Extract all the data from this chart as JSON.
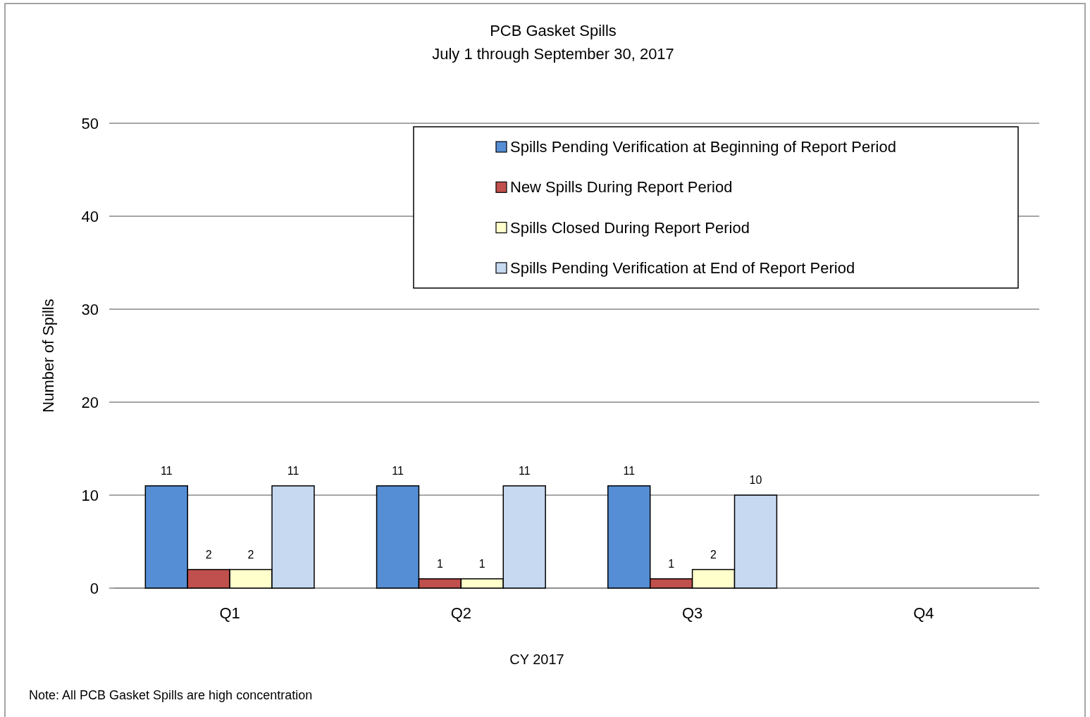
{
  "chart_data": {
    "type": "bar",
    "title": "PCB Gasket Spills",
    "subtitle": "July 1 through September 30, 2017",
    "xlabel": "CY 2017",
    "ylabel": "Number of Spills",
    "categories": [
      "Q1",
      "Q2",
      "Q3",
      "Q4"
    ],
    "series": [
      {
        "name": "Spills Pending Verification at Beginning of Report Period",
        "color": "#558ed5",
        "values": [
          11,
          11,
          11,
          null
        ]
      },
      {
        "name": "New Spills During Report Period",
        "color": "#c0504d",
        "values": [
          2,
          1,
          1,
          null
        ]
      },
      {
        "name": "Spills Closed During Report Period",
        "color": "#ffffcc",
        "values": [
          2,
          1,
          2,
          null
        ]
      },
      {
        "name": "Spills Pending Verification at End of Report Period",
        "color": "#c6d9f1",
        "values": [
          11,
          11,
          10,
          null
        ]
      }
    ],
    "ylim": [
      0,
      50
    ],
    "yticks": [
      0,
      10,
      20,
      30,
      40,
      50
    ],
    "grid": "y",
    "legend": "top right",
    "data_labels": true,
    "annotations": [
      "Note: All PCB Gasket Spills are high concentration"
    ]
  }
}
